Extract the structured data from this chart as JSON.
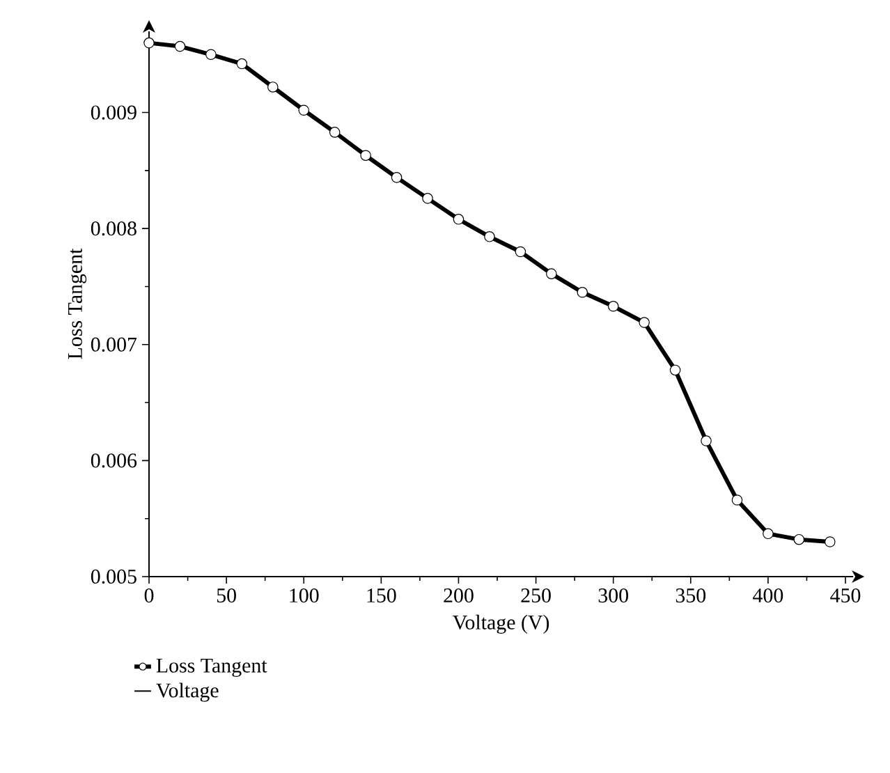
{
  "chart_data": {
    "type": "line",
    "xlabel": "Voltage (V)",
    "ylabel": "Loss Tangent",
    "x": [
      0,
      20,
      40,
      60,
      80,
      100,
      120,
      140,
      160,
      180,
      200,
      220,
      240,
      260,
      280,
      300,
      320,
      340,
      360,
      380,
      400,
      420,
      440
    ],
    "series": [
      {
        "name": "Loss Tangent",
        "color": "#000000",
        "marker": "circle",
        "values": [
          0.0096,
          0.00957,
          0.0095,
          0.00942,
          0.00922,
          0.00902,
          0.00883,
          0.00863,
          0.00844,
          0.00826,
          0.00808,
          0.00793,
          0.0078,
          0.00761,
          0.00745,
          0.00733,
          0.00719,
          0.00678,
          0.00617,
          0.00566,
          0.00537,
          0.00532,
          0.0053
        ]
      },
      {
        "name": "Voltage",
        "color": "#000000",
        "marker": "none",
        "values": [
          null,
          null,
          null,
          null,
          null,
          null,
          null,
          null,
          null,
          null,
          null,
          null,
          null,
          null,
          null,
          null,
          null,
          null,
          null,
          null,
          null,
          null,
          null
        ]
      }
    ],
    "xlim": [
      0,
      455
    ],
    "ylim": [
      0.005,
      0.0097
    ],
    "xticks": [
      0,
      50,
      100,
      150,
      200,
      250,
      300,
      350,
      400,
      450
    ],
    "yticks": [
      0.005,
      0.006,
      0.007,
      0.008,
      0.009
    ],
    "grid": false,
    "legend": "bottom",
    "line_style": "solid"
  }
}
